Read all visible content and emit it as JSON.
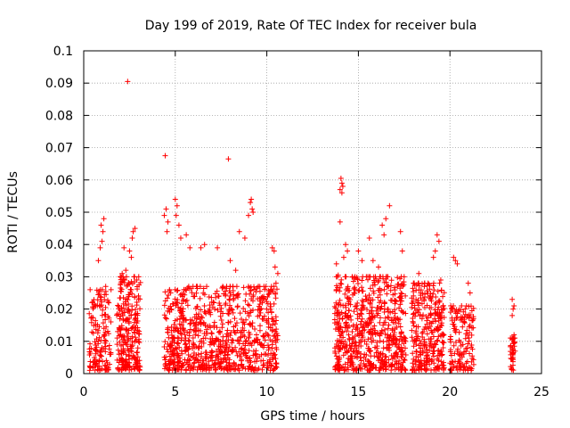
{
  "chart_data": {
    "type": "scatter",
    "title": "Day 199 of 2019, Rate Of TEC Index for receiver bula",
    "xlabel": "GPS time / hours",
    "ylabel": "ROTI / TECUs",
    "xlim": [
      0,
      25
    ],
    "ylim": [
      0,
      0.1
    ],
    "xticks": [
      0,
      5,
      10,
      15,
      20,
      25
    ],
    "xtick_labels": [
      "0",
      "5",
      "10",
      "15",
      "20",
      "25"
    ],
    "yticks": [
      0,
      0.01,
      0.02,
      0.03,
      0.04,
      0.05,
      0.06,
      0.07,
      0.08,
      0.09,
      0.1
    ],
    "ytick_labels": [
      "0",
      "0.01",
      "0.02",
      "0.03",
      "0.04",
      "0.05",
      "0.06",
      "0.07",
      "0.08",
      "0.09",
      "0.1"
    ],
    "grid": true,
    "marker": "+",
    "color": "#ff0000",
    "series": [
      {
        "name": "ROTI",
        "clusters": [
          {
            "x": [
              0.3,
              1.5
            ],
            "ymax": 0.026,
            "n": 140
          },
          {
            "x": [
              1.8,
              3.1
            ],
            "ymax": 0.03,
            "n": 260
          },
          {
            "x": [
              4.4,
              5.6
            ],
            "ymax": 0.026,
            "n": 200
          },
          {
            "x": [
              5.6,
              10.6
            ],
            "ymax": 0.027,
            "n": 650
          },
          {
            "x": [
              13.7,
              17.6
            ],
            "ymax": 0.03,
            "n": 650
          },
          {
            "x": [
              17.9,
              19.7
            ],
            "ymax": 0.028,
            "n": 300
          },
          {
            "x": [
              20.0,
              21.3
            ],
            "ymax": 0.021,
            "n": 140
          },
          {
            "x": [
              23.3,
              23.6
            ],
            "ymax": 0.011,
            "n": 40
          }
        ],
        "points": [
          [
            0.35,
            0.026
          ],
          [
            0.45,
            0.022
          ],
          [
            0.6,
            0.0215
          ],
          [
            0.8,
            0.035
          ],
          [
            0.9,
            0.039
          ],
          [
            0.95,
            0.046
          ],
          [
            1.05,
            0.044
          ],
          [
            1.1,
            0.048
          ],
          [
            1.2,
            0.027
          ],
          [
            1.0,
            0.041
          ],
          [
            2.2,
            0.039
          ],
          [
            2.4,
            0.0905
          ],
          [
            2.5,
            0.038
          ],
          [
            2.6,
            0.036
          ],
          [
            2.7,
            0.044
          ],
          [
            2.8,
            0.045
          ],
          [
            2.65,
            0.042
          ],
          [
            2.3,
            0.032
          ],
          [
            2.9,
            0.029
          ],
          [
            2.1,
            0.031
          ],
          [
            4.4,
            0.049
          ],
          [
            4.45,
            0.0675
          ],
          [
            4.5,
            0.051
          ],
          [
            4.6,
            0.047
          ],
          [
            4.55,
            0.044
          ],
          [
            5.0,
            0.054
          ],
          [
            5.1,
            0.052
          ],
          [
            5.2,
            0.046
          ],
          [
            5.05,
            0.049
          ],
          [
            5.3,
            0.042
          ],
          [
            5.6,
            0.043
          ],
          [
            5.8,
            0.039
          ],
          [
            6.4,
            0.039
          ],
          [
            6.6,
            0.04
          ],
          [
            7.3,
            0.039
          ],
          [
            7.9,
            0.0665
          ],
          [
            8.0,
            0.035
          ],
          [
            8.3,
            0.032
          ],
          [
            8.5,
            0.044
          ],
          [
            8.8,
            0.042
          ],
          [
            9.1,
            0.053
          ],
          [
            9.15,
            0.054
          ],
          [
            9.2,
            0.051
          ],
          [
            9.25,
            0.05
          ],
          [
            9.0,
            0.049
          ],
          [
            10.3,
            0.039
          ],
          [
            10.4,
            0.038
          ],
          [
            10.45,
            0.033
          ],
          [
            10.5,
            0.028
          ],
          [
            10.6,
            0.031
          ],
          [
            13.8,
            0.034
          ],
          [
            13.9,
            0.0305
          ],
          [
            14.0,
            0.057
          ],
          [
            14.05,
            0.0605
          ],
          [
            14.1,
            0.059
          ],
          [
            14.15,
            0.058
          ],
          [
            14.1,
            0.056
          ],
          [
            14.0,
            0.047
          ],
          [
            14.3,
            0.04
          ],
          [
            14.4,
            0.038
          ],
          [
            14.2,
            0.036
          ],
          [
            15.0,
            0.038
          ],
          [
            15.2,
            0.035
          ],
          [
            15.6,
            0.042
          ],
          [
            15.8,
            0.035
          ],
          [
            16.1,
            0.033
          ],
          [
            16.3,
            0.046
          ],
          [
            16.4,
            0.043
          ],
          [
            16.5,
            0.048
          ],
          [
            16.7,
            0.052
          ],
          [
            17.3,
            0.044
          ],
          [
            17.4,
            0.038
          ],
          [
            17.5,
            0.03
          ],
          [
            18.3,
            0.031
          ],
          [
            18.6,
            0.027
          ],
          [
            19.1,
            0.036
          ],
          [
            19.3,
            0.043
          ],
          [
            19.4,
            0.041
          ],
          [
            19.5,
            0.029
          ],
          [
            19.2,
            0.038
          ],
          [
            20.2,
            0.036
          ],
          [
            20.4,
            0.034
          ],
          [
            20.3,
            0.035
          ],
          [
            21.0,
            0.028
          ],
          [
            21.1,
            0.025
          ],
          [
            23.4,
            0.023
          ],
          [
            23.5,
            0.021
          ],
          [
            23.45,
            0.02
          ],
          [
            23.4,
            0.018
          ],
          [
            23.5,
            0.012
          ]
        ]
      }
    ]
  }
}
